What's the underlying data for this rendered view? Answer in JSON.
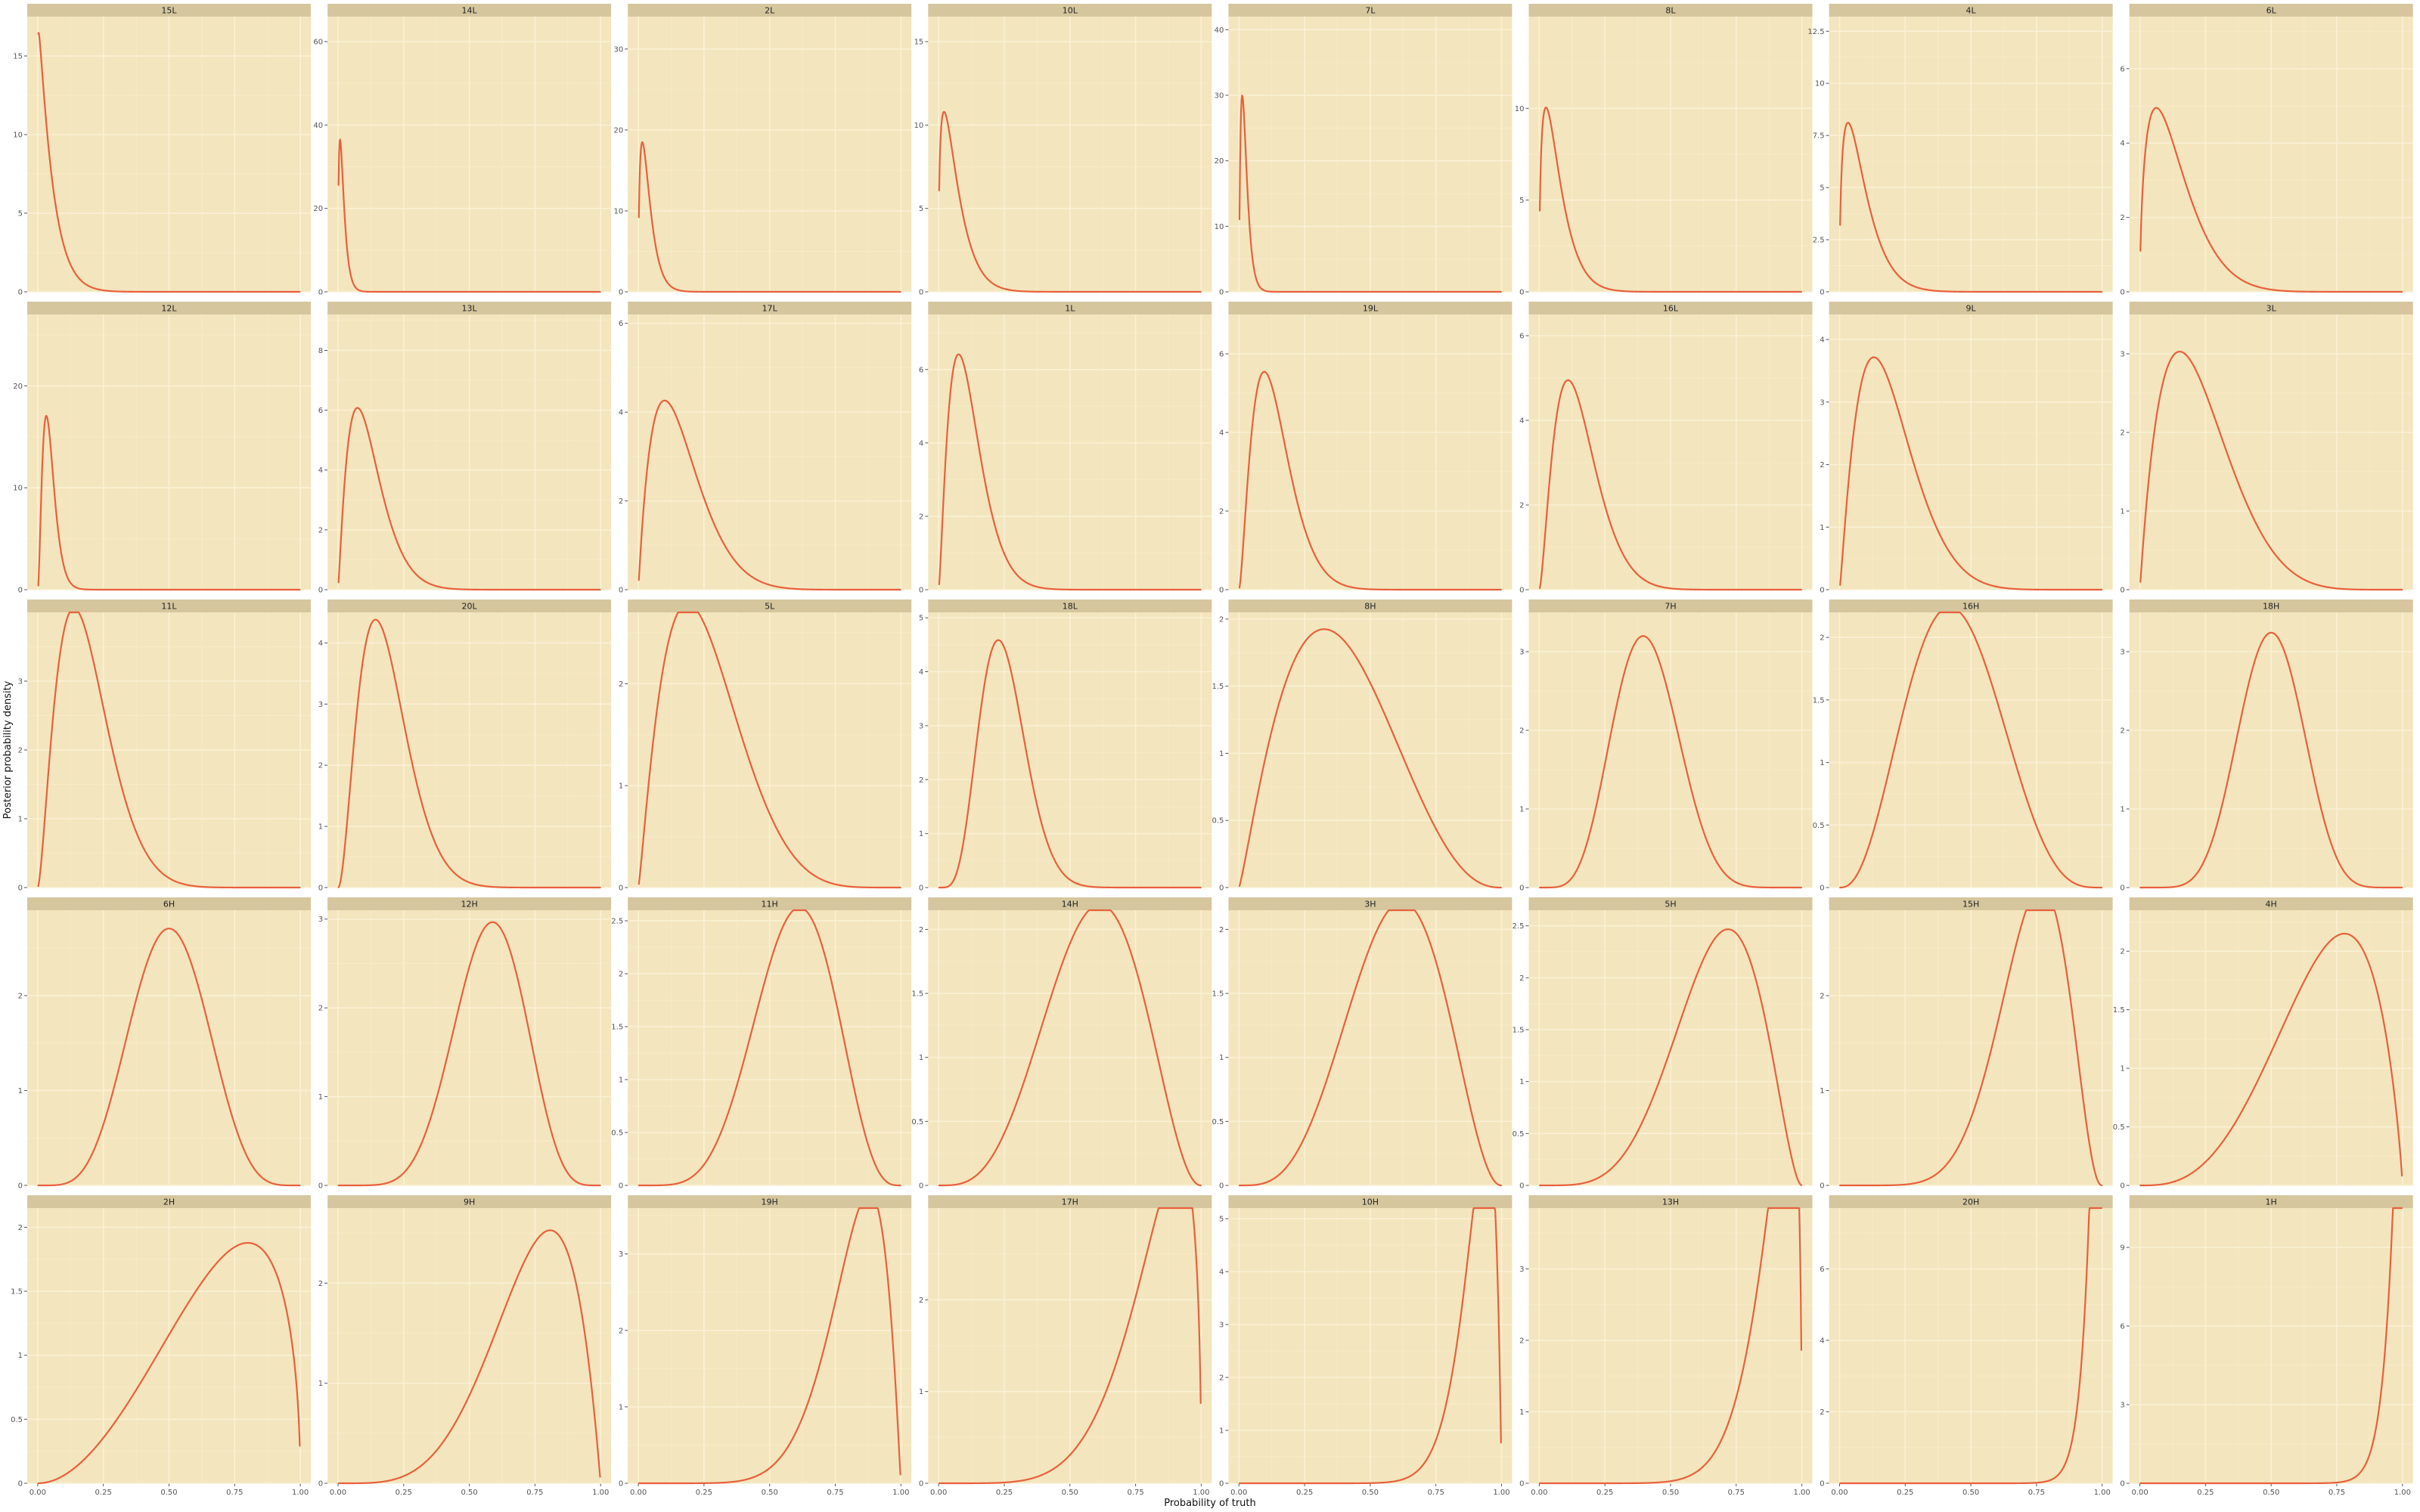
{
  "colors": {
    "panel": "#f3e5bd",
    "strip": "#d5c69e",
    "grid_major": "#faf1d6",
    "grid_minor": "#f7ebc9",
    "line": "#e8603c",
    "tick": "#555555"
  },
  "chart_data": {
    "type": "line",
    "layout": "facet_wrap",
    "ncol": 8,
    "nrow": 5,
    "xlabel": "Probability of truth",
    "ylabel": "Posterior probability density",
    "x_ticks": [
      0,
      0.25,
      0.5,
      0.75,
      1
    ],
    "x_tick_labels": [
      "0.00",
      "0.25",
      "0.50",
      "0.75",
      "1.00"
    ],
    "xlim": [
      -0.04,
      1.04
    ],
    "grid": true,
    "distribution": "beta",
    "panels": [
      {
        "name": "15L",
        "a": 1.06,
        "b": 20,
        "ymax": 17.5,
        "yticks": [
          0,
          5,
          10,
          15
        ]
      },
      {
        "name": "14L",
        "a": 1.6,
        "b": 80,
        "ymax": 66,
        "yticks": [
          0,
          20,
          40,
          60
        ]
      },
      {
        "name": "2L",
        "a": 1.6,
        "b": 40,
        "ymax": 34,
        "yticks": [
          0,
          10,
          20,
          30
        ]
      },
      {
        "name": "10L",
        "a": 1.4,
        "b": 20,
        "ymax": 16.5,
        "yticks": [
          0,
          5,
          10,
          15
        ]
      },
      {
        "name": "7L",
        "a": 2,
        "b": 80,
        "ymax": 42,
        "yticks": [
          0,
          10,
          20,
          30,
          40
        ]
      },
      {
        "name": "8L",
        "a": 1.5,
        "b": 20,
        "ymax": 15,
        "yticks": [
          0,
          5,
          10
        ]
      },
      {
        "name": "4L",
        "a": 1.5,
        "b": 16,
        "ymax": 13.2,
        "yticks": [
          0,
          2.5,
          5,
          7.5,
          10,
          12.5
        ]
      },
      {
        "name": "6L",
        "a": 1.6,
        "b": 10,
        "ymax": 7.4,
        "yticks": [
          0,
          2,
          4,
          6
        ]
      },
      {
        "name": "12L",
        "a": 3,
        "b": 60,
        "ymax": 27,
        "yticks": [
          0,
          10,
          20
        ]
      },
      {
        "name": "13L",
        "a": 2.2,
        "b": 16,
        "ymax": 9.2,
        "yticks": [
          0,
          2,
          4,
          6,
          8
        ]
      },
      {
        "name": "17L",
        "a": 2,
        "b": 10,
        "ymax": 6.2,
        "yticks": [
          0,
          2,
          4,
          6
        ]
      },
      {
        "name": "1L",
        "a": 2.4,
        "b": 18,
        "ymax": 7.5,
        "yticks": [
          0,
          2,
          4,
          6
        ]
      },
      {
        "name": "19L",
        "a": 2.6,
        "b": 16,
        "ymax": 7,
        "yticks": [
          0,
          2,
          4,
          6
        ]
      },
      {
        "name": "16L",
        "a": 2.6,
        "b": 14,
        "ymax": 6.5,
        "yticks": [
          0,
          2,
          4,
          6
        ]
      },
      {
        "name": "9L",
        "a": 2.2,
        "b": 9,
        "ymax": 4.4,
        "yticks": [
          0,
          1,
          2,
          3,
          4
        ]
      },
      {
        "name": "3L",
        "a": 2,
        "b": 6.6,
        "ymax": 3.5,
        "yticks": [
          0,
          1,
          2,
          3
        ]
      },
      {
        "name": "11L",
        "a": 2.6,
        "b": 11,
        "ymax": 4.0,
        "yticks": [
          0,
          1,
          2,
          3
        ]
      },
      {
        "name": "20L",
        "a": 3,
        "b": 13,
        "ymax": 4.5,
        "yticks": [
          0,
          1,
          2,
          3,
          4
        ]
      },
      {
        "name": "5L",
        "a": 2.2,
        "b": 6.2,
        "ymax": 2.7,
        "yticks": [
          0,
          1,
          2
        ]
      },
      {
        "name": "18L",
        "a": 6,
        "b": 18,
        "ymax": 5.1,
        "yticks": [
          0,
          1,
          2,
          3,
          4,
          5
        ]
      },
      {
        "name": "8H",
        "a": 2.2,
        "b": 3.5,
        "ymax": 2.05,
        "yticks": [
          0,
          0.5,
          1,
          1.5,
          2
        ]
      },
      {
        "name": "7H",
        "a": 6.5,
        "b": 9.4,
        "ymax": 3.5,
        "yticks": [
          0,
          1,
          2,
          3
        ]
      },
      {
        "name": "16H",
        "a": 3.6,
        "b": 4.6,
        "ymax": 2.2,
        "yticks": [
          0,
          0.5,
          1,
          1.5,
          2
        ]
      },
      {
        "name": "18H",
        "a": 8.5,
        "b": 8.5,
        "ymax": 3.5,
        "yticks": [
          0,
          1,
          2,
          3
        ]
      },
      {
        "name": "6H",
        "a": 6,
        "b": 6,
        "ymax": 2.9,
        "yticks": [
          0,
          1,
          2
        ]
      },
      {
        "name": "12H",
        "a": 8,
        "b": 5.9,
        "ymax": 3.1,
        "yticks": [
          0,
          1,
          2,
          3
        ]
      },
      {
        "name": "11H",
        "a": 6.4,
        "b": 4.4,
        "ymax": 2.6,
        "yticks": [
          0,
          0.5,
          1,
          1.5,
          2,
          2.5
        ]
      },
      {
        "name": "14H",
        "a": 4.5,
        "b": 3.2,
        "ymax": 2.15,
        "yticks": [
          0,
          0.5,
          1,
          1.5,
          2
        ]
      },
      {
        "name": "3H",
        "a": 4.6,
        "b": 3.2,
        "ymax": 2.15,
        "yticks": [
          0,
          0.5,
          1,
          1.5,
          2
        ]
      },
      {
        "name": "5H",
        "a": 5.6,
        "b": 2.8,
        "ymax": 2.65,
        "yticks": [
          0,
          0.5,
          1,
          1.5,
          2,
          2.5
        ]
      },
      {
        "name": "15H",
        "a": 8.6,
        "b": 3.3,
        "ymax": 2.9,
        "yticks": [
          0,
          1,
          2
        ]
      },
      {
        "name": "4H",
        "a": 4,
        "b": 1.85,
        "ymax": 2.35,
        "yticks": [
          0,
          0.5,
          1,
          1.5,
          2
        ]
      },
      {
        "name": "2H",
        "a": 3,
        "b": 1.5,
        "ymax": 2.15,
        "yticks": [
          0,
          0.5,
          1,
          1.5,
          2
        ]
      },
      {
        "name": "9H",
        "a": 5.2,
        "b": 2,
        "ymax": 2.75,
        "yticks": [
          0,
          1,
          2
        ]
      },
      {
        "name": "19H",
        "a": 9,
        "b": 2.1,
        "ymax": 3.6,
        "yticks": [
          0,
          1,
          2,
          3
        ]
      },
      {
        "name": "17H",
        "a": 6.5,
        "b": 1.5,
        "ymax": 3.0,
        "yticks": [
          0,
          1,
          2
        ]
      },
      {
        "name": "10H",
        "a": 16,
        "b": 1.9,
        "ymax": 5.2,
        "yticks": [
          0,
          1,
          2,
          3,
          4,
          5
        ]
      },
      {
        "name": "13H",
        "a": 11,
        "b": 1.5,
        "ymax": 3.85,
        "yticks": [
          0,
          1,
          2,
          3
        ]
      },
      {
        "name": "20H",
        "a": 28,
        "b": 1.08,
        "ymax": 7.7,
        "yticks": [
          0,
          2,
          4,
          6
        ]
      },
      {
        "name": "1H",
        "a": 25,
        "b": 1.05,
        "ymax": 10.5,
        "yticks": [
          0,
          3,
          6,
          9
        ]
      }
    ]
  }
}
